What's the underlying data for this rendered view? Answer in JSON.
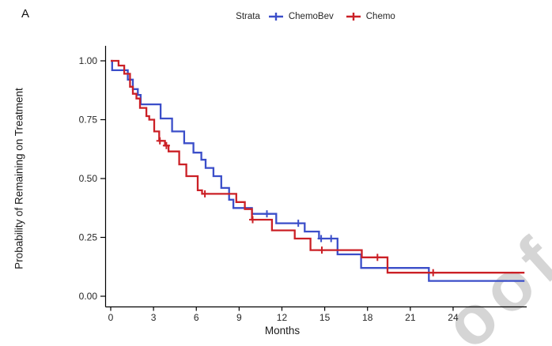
{
  "panel_label": "A",
  "watermark": {
    "text": "oof",
    "color": "#d5d5d5"
  },
  "chart_data": {
    "type": "line",
    "subtype": "kaplan_meier_step",
    "title": "",
    "xlabel": "Months",
    "ylabel": "Probability of Remaining on Treatment",
    "xlim": [
      0,
      29
    ],
    "ylim": [
      0,
      1
    ],
    "grid": false,
    "x_ticks": [
      0,
      3,
      6,
      9,
      12,
      15,
      18,
      21,
      24
    ],
    "y_ticks": [
      {
        "value": 0,
        "label": "0.00"
      },
      {
        "value": 0.25,
        "label": "0.25"
      },
      {
        "value": 0.5,
        "label": "0.50"
      },
      {
        "value": 0.75,
        "label": "0.75"
      },
      {
        "value": 1,
        "label": "1.00"
      }
    ],
    "legend": {
      "title": "Strata",
      "position": "top",
      "items": [
        {
          "label": "ChemoBev",
          "color": "#3b4ec9"
        },
        {
          "label": "Chemo",
          "color": "#cb2026"
        }
      ]
    },
    "series": [
      {
        "name": "ChemoBev",
        "color": "#3b4ec9",
        "end_time": 29,
        "steps": [
          [
            0,
            1.0
          ],
          [
            0.1,
            0.96
          ],
          [
            1.2,
            0.92
          ],
          [
            1.55,
            0.88
          ],
          [
            1.9,
            0.855
          ],
          [
            2.1,
            0.815
          ],
          [
            3.5,
            0.755
          ],
          [
            4.3,
            0.7
          ],
          [
            5.15,
            0.65
          ],
          [
            5.8,
            0.61
          ],
          [
            6.35,
            0.58
          ],
          [
            6.65,
            0.545
          ],
          [
            7.2,
            0.51
          ],
          [
            7.75,
            0.46
          ],
          [
            8.3,
            0.41
          ],
          [
            8.6,
            0.375
          ],
          [
            9.9,
            0.35
          ],
          [
            11.6,
            0.31
          ],
          [
            13.6,
            0.275
          ],
          [
            14.6,
            0.245
          ],
          [
            15.9,
            0.178
          ],
          [
            17.55,
            0.12
          ],
          [
            22.3,
            0.065
          ]
        ],
        "censor_marks": [
          [
            10.95,
            0.35
          ],
          [
            13.15,
            0.31
          ],
          [
            14.75,
            0.245
          ],
          [
            15.45,
            0.245
          ]
        ]
      },
      {
        "name": "Chemo",
        "color": "#cb2026",
        "end_time": 29,
        "steps": [
          [
            0,
            1.0
          ],
          [
            0.55,
            0.98
          ],
          [
            0.95,
            0.945
          ],
          [
            1.35,
            0.89
          ],
          [
            1.55,
            0.86
          ],
          [
            1.8,
            0.84
          ],
          [
            2.05,
            0.8
          ],
          [
            2.5,
            0.765
          ],
          [
            2.7,
            0.75
          ],
          [
            3.05,
            0.7
          ],
          [
            3.4,
            0.66
          ],
          [
            3.8,
            0.64
          ],
          [
            4.05,
            0.615
          ],
          [
            4.8,
            0.56
          ],
          [
            5.3,
            0.51
          ],
          [
            6.1,
            0.45
          ],
          [
            6.4,
            0.435
          ],
          [
            8.8,
            0.4
          ],
          [
            9.4,
            0.37
          ],
          [
            9.9,
            0.325
          ],
          [
            11.3,
            0.28
          ],
          [
            12.9,
            0.245
          ],
          [
            14.0,
            0.196
          ],
          [
            17.6,
            0.165
          ],
          [
            19.4,
            0.1
          ]
        ],
        "censor_marks": [
          [
            3.45,
            0.66
          ],
          [
            3.9,
            0.64
          ],
          [
            6.6,
            0.435
          ],
          [
            9.95,
            0.325
          ],
          [
            14.8,
            0.196
          ],
          [
            18.7,
            0.165
          ],
          [
            22.6,
            0.1
          ]
        ]
      }
    ]
  }
}
